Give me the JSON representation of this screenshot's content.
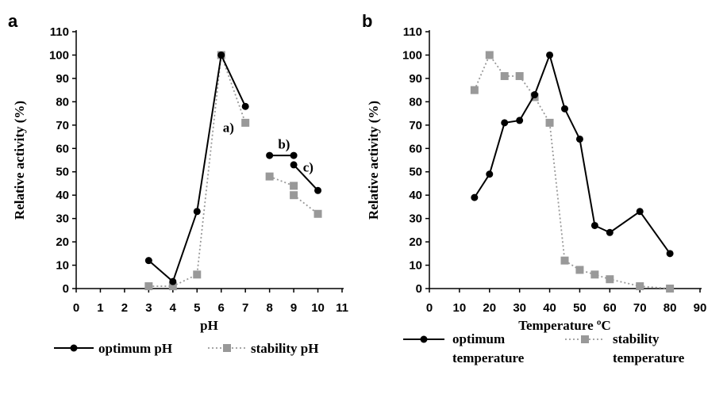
{
  "chart_data": [
    {
      "type": "line",
      "panel_label": "a",
      "xlabel": "pH",
      "ylabel": "Relative activity (%)",
      "xlim": [
        0,
        11
      ],
      "ylim": [
        0,
        110
      ],
      "xticks": [
        0,
        1,
        2,
        3,
        4,
        5,
        6,
        7,
        8,
        9,
        10,
        11
      ],
      "yticks": [
        0,
        10,
        20,
        30,
        40,
        50,
        60,
        70,
        80,
        90,
        100,
        110
      ],
      "grid": false,
      "legend_position": "bottom",
      "series": [
        {
          "name": "optimum pH",
          "marker": "circle",
          "style": "solid",
          "color": "#000000",
          "segments": [
            [
              {
                "x": 3,
                "y": 12
              },
              {
                "x": 4,
                "y": 3
              },
              {
                "x": 5,
                "y": 33
              },
              {
                "x": 6,
                "y": 100
              },
              {
                "x": 7,
                "y": 78
              }
            ],
            [
              {
                "x": 8,
                "y": 57
              },
              {
                "x": 9,
                "y": 57
              }
            ],
            [
              {
                "x": 9,
                "y": 53
              },
              {
                "x": 10,
                "y": 42
              }
            ]
          ]
        },
        {
          "name": "stability pH",
          "marker": "square",
          "style": "dotted",
          "color": "#999999",
          "segments": [
            [
              {
                "x": 3,
                "y": 1
              },
              {
                "x": 4,
                "y": 1
              },
              {
                "x": 5,
                "y": 6
              },
              {
                "x": 6,
                "y": 100
              },
              {
                "x": 7,
                "y": 71
              }
            ],
            [
              {
                "x": 8,
                "y": 48
              },
              {
                "x": 9,
                "y": 44
              }
            ],
            [
              {
                "x": 9,
                "y": 40
              },
              {
                "x": 10,
                "y": 32
              }
            ]
          ]
        }
      ],
      "annotations": [
        {
          "text": "a)",
          "x": 6.3,
          "y": 67
        },
        {
          "text": "b)",
          "x": 8.6,
          "y": 60
        },
        {
          "text": "c)",
          "x": 9.6,
          "y": 50
        }
      ]
    },
    {
      "type": "line",
      "panel_label": "b",
      "xlabel": "Temperature ºC",
      "ylabel": "Relative activity (%)",
      "xlim": [
        0,
        90
      ],
      "ylim": [
        0,
        110
      ],
      "xticks": [
        0,
        10,
        20,
        30,
        40,
        50,
        60,
        70,
        80,
        90
      ],
      "yticks": [
        0,
        10,
        20,
        30,
        40,
        50,
        60,
        70,
        80,
        90,
        100,
        110
      ],
      "grid": false,
      "legend_position": "bottom",
      "series": [
        {
          "name": "optimum temperature",
          "legend_lines": [
            "optimum",
            "temperature"
          ],
          "marker": "circle",
          "style": "solid",
          "color": "#000000",
          "segments": [
            [
              {
                "x": 15,
                "y": 39
              },
              {
                "x": 20,
                "y": 49
              },
              {
                "x": 25,
                "y": 71
              },
              {
                "x": 30,
                "y": 72
              },
              {
                "x": 35,
                "y": 83
              },
              {
                "x": 40,
                "y": 100
              },
              {
                "x": 45,
                "y": 77
              },
              {
                "x": 50,
                "y": 64
              },
              {
                "x": 55,
                "y": 27
              },
              {
                "x": 60,
                "y": 24
              },
              {
                "x": 70,
                "y": 33
              },
              {
                "x": 80,
                "y": 15
              }
            ]
          ]
        },
        {
          "name": "stability temperature",
          "legend_lines": [
            "stability",
            "temperature"
          ],
          "marker": "square",
          "style": "dotted",
          "color": "#999999",
          "segments": [
            [
              {
                "x": 15,
                "y": 85
              },
              {
                "x": 20,
                "y": 100
              },
              {
                "x": 25,
                "y": 91
              },
              {
                "x": 30,
                "y": 91
              },
              {
                "x": 35,
                "y": 82
              },
              {
                "x": 40,
                "y": 71
              },
              {
                "x": 45,
                "y": 12
              },
              {
                "x": 50,
                "y": 8
              },
              {
                "x": 55,
                "y": 6
              },
              {
                "x": 60,
                "y": 4
              },
              {
                "x": 70,
                "y": 1
              },
              {
                "x": 80,
                "y": 0
              }
            ]
          ]
        }
      ],
      "annotations": []
    }
  ]
}
